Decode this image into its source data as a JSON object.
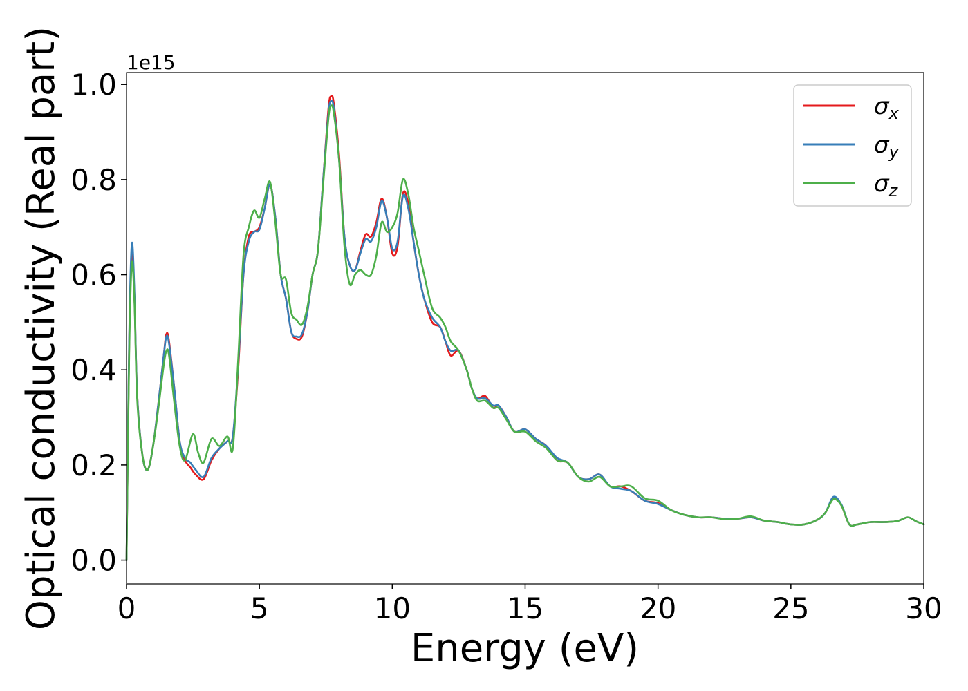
{
  "chart_data": {
    "type": "line",
    "xlabel": "Energy (eV)",
    "ylabel": "Optical conductivity (Real part)",
    "y_offset_label": "1e15",
    "xlim": [
      0,
      30
    ],
    "ylim": [
      -0.05,
      1.025
    ],
    "x_ticks": [
      0,
      5,
      10,
      15,
      20,
      25,
      30
    ],
    "x_tick_labels": [
      "0",
      "5",
      "10",
      "15",
      "20",
      "25",
      "30"
    ],
    "y_ticks": [
      0.0,
      0.2,
      0.4,
      0.6,
      0.8,
      1.0
    ],
    "y_tick_labels": [
      "0.0",
      "0.2",
      "0.4",
      "0.6",
      "0.8",
      "1.0"
    ],
    "grid": false,
    "legend_position": "top-right",
    "series": [
      {
        "name": "σx",
        "symbol": "σ",
        "subscript": "x",
        "color": "#e41a1c",
        "x": [
          0,
          0.1,
          0.2,
          0.3,
          0.4,
          0.6,
          0.8,
          1.0,
          1.2,
          1.4,
          1.5,
          1.6,
          1.8,
          2.0,
          2.2,
          2.4,
          2.6,
          2.9,
          3.2,
          3.5,
          3.8,
          4.0,
          4.2,
          4.4,
          4.6,
          4.8,
          5.0,
          5.2,
          5.4,
          5.6,
          5.8,
          6.0,
          6.2,
          6.4,
          6.6,
          6.8,
          7.0,
          7.2,
          7.4,
          7.6,
          7.7,
          7.8,
          8.0,
          8.2,
          8.4,
          8.6,
          8.8,
          9.0,
          9.2,
          9.4,
          9.6,
          9.8,
          10.0,
          10.2,
          10.4,
          10.6,
          10.8,
          11.0,
          11.2,
          11.5,
          11.8,
          12.0,
          12.2,
          12.5,
          12.8,
          13.0,
          13.2,
          13.5,
          13.8,
          14.0,
          14.3,
          14.6,
          15.0,
          15.4,
          15.8,
          16.2,
          16.6,
          17.0,
          17.4,
          17.8,
          18.2,
          18.6,
          19.0,
          19.5,
          20.0,
          20.5,
          21.0,
          21.5,
          22.0,
          22.5,
          23.0,
          23.5,
          24.0,
          24.5,
          25.0,
          25.5,
          26.0,
          26.3,
          26.6,
          26.9,
          27.2,
          27.5,
          28.0,
          28.5,
          29.0,
          29.4,
          29.7,
          30.0
        ],
        "values": [
          0.0,
          0.45,
          0.64,
          0.55,
          0.35,
          0.22,
          0.19,
          0.24,
          0.33,
          0.43,
          0.475,
          0.46,
          0.36,
          0.25,
          0.21,
          0.195,
          0.18,
          0.17,
          0.21,
          0.235,
          0.25,
          0.26,
          0.4,
          0.6,
          0.68,
          0.69,
          0.7,
          0.74,
          0.79,
          0.72,
          0.6,
          0.55,
          0.48,
          0.465,
          0.47,
          0.52,
          0.6,
          0.65,
          0.8,
          0.95,
          0.975,
          0.96,
          0.85,
          0.68,
          0.62,
          0.61,
          0.65,
          0.685,
          0.68,
          0.71,
          0.76,
          0.72,
          0.645,
          0.66,
          0.77,
          0.75,
          0.67,
          0.6,
          0.55,
          0.5,
          0.49,
          0.46,
          0.43,
          0.44,
          0.4,
          0.36,
          0.34,
          0.345,
          0.32,
          0.325,
          0.3,
          0.27,
          0.275,
          0.255,
          0.24,
          0.21,
          0.205,
          0.175,
          0.17,
          0.18,
          0.155,
          0.155,
          0.145,
          0.125,
          0.12,
          0.105,
          0.095,
          0.09,
          0.09,
          0.087,
          0.087,
          0.09,
          0.083,
          0.08,
          0.075,
          0.075,
          0.085,
          0.1,
          0.13,
          0.115,
          0.075,
          0.075,
          0.08,
          0.08,
          0.082,
          0.09,
          0.082,
          0.075
        ]
      },
      {
        "name": "σy",
        "symbol": "σ",
        "subscript": "y",
        "color": "#377eb8",
        "x": [
          0,
          0.1,
          0.2,
          0.3,
          0.4,
          0.6,
          0.8,
          1.0,
          1.2,
          1.4,
          1.5,
          1.6,
          1.8,
          2.0,
          2.2,
          2.4,
          2.6,
          2.9,
          3.2,
          3.5,
          3.8,
          4.0,
          4.2,
          4.4,
          4.6,
          4.8,
          5.0,
          5.2,
          5.4,
          5.6,
          5.8,
          6.0,
          6.2,
          6.4,
          6.6,
          6.8,
          7.0,
          7.2,
          7.4,
          7.6,
          7.7,
          7.8,
          8.0,
          8.2,
          8.4,
          8.6,
          8.8,
          9.0,
          9.2,
          9.4,
          9.6,
          9.8,
          10.0,
          10.2,
          10.4,
          10.6,
          10.8,
          11.0,
          11.2,
          11.5,
          11.8,
          12.0,
          12.2,
          12.5,
          12.8,
          13.0,
          13.2,
          13.5,
          13.8,
          14.0,
          14.3,
          14.6,
          15.0,
          15.4,
          15.8,
          16.2,
          16.6,
          17.0,
          17.4,
          17.8,
          18.2,
          18.6,
          19.0,
          19.5,
          20.0,
          20.5,
          21.0,
          21.5,
          22.0,
          22.5,
          23.0,
          23.5,
          24.0,
          24.5,
          25.0,
          25.5,
          26.0,
          26.3,
          26.6,
          26.9,
          27.2,
          27.5,
          28.0,
          28.5,
          29.0,
          29.4,
          29.7,
          30.0
        ],
        "values": [
          0.0,
          0.46,
          0.665,
          0.56,
          0.35,
          0.22,
          0.19,
          0.24,
          0.33,
          0.43,
          0.47,
          0.455,
          0.36,
          0.25,
          0.215,
          0.205,
          0.19,
          0.175,
          0.215,
          0.235,
          0.25,
          0.26,
          0.41,
          0.6,
          0.67,
          0.69,
          0.695,
          0.74,
          0.79,
          0.72,
          0.6,
          0.55,
          0.48,
          0.47,
          0.475,
          0.52,
          0.6,
          0.65,
          0.8,
          0.94,
          0.965,
          0.95,
          0.84,
          0.68,
          0.62,
          0.61,
          0.645,
          0.675,
          0.67,
          0.7,
          0.755,
          0.72,
          0.655,
          0.67,
          0.765,
          0.74,
          0.67,
          0.6,
          0.55,
          0.51,
          0.49,
          0.46,
          0.44,
          0.44,
          0.4,
          0.36,
          0.34,
          0.34,
          0.325,
          0.325,
          0.3,
          0.27,
          0.275,
          0.255,
          0.24,
          0.215,
          0.205,
          0.175,
          0.17,
          0.18,
          0.155,
          0.15,
          0.145,
          0.125,
          0.118,
          0.105,
          0.095,
          0.09,
          0.09,
          0.087,
          0.087,
          0.09,
          0.083,
          0.08,
          0.075,
          0.075,
          0.085,
          0.1,
          0.133,
          0.117,
          0.075,
          0.075,
          0.08,
          0.08,
          0.082,
          0.09,
          0.082,
          0.075
        ]
      },
      {
        "name": "σz",
        "symbol": "σ",
        "subscript": "z",
        "color": "#4daf4a",
        "x": [
          0,
          0.1,
          0.2,
          0.3,
          0.4,
          0.6,
          0.8,
          1.0,
          1.2,
          1.4,
          1.5,
          1.6,
          1.8,
          2.0,
          2.2,
          2.5,
          2.7,
          2.9,
          3.2,
          3.5,
          3.8,
          4.0,
          4.2,
          4.4,
          4.6,
          4.8,
          5.0,
          5.2,
          5.4,
          5.6,
          5.8,
          6.0,
          6.2,
          6.4,
          6.6,
          6.8,
          7.0,
          7.2,
          7.4,
          7.6,
          7.7,
          7.8,
          8.0,
          8.2,
          8.4,
          8.6,
          8.8,
          9.0,
          9.2,
          9.4,
          9.6,
          9.8,
          10.0,
          10.2,
          10.4,
          10.6,
          10.8,
          11.0,
          11.2,
          11.5,
          11.8,
          12.0,
          12.2,
          12.5,
          12.8,
          13.0,
          13.2,
          13.5,
          13.8,
          14.0,
          14.3,
          14.6,
          15.0,
          15.4,
          15.8,
          16.2,
          16.6,
          17.0,
          17.4,
          17.8,
          18.2,
          18.6,
          19.0,
          19.5,
          20.0,
          20.5,
          21.0,
          21.5,
          22.0,
          22.5,
          23.0,
          23.5,
          24.0,
          24.5,
          25.0,
          25.5,
          26.0,
          26.3,
          26.6,
          26.9,
          27.2,
          27.5,
          28.0,
          28.5,
          29.0,
          29.4,
          29.7,
          30.0
        ],
        "values": [
          0.0,
          0.43,
          0.625,
          0.54,
          0.34,
          0.22,
          0.19,
          0.24,
          0.32,
          0.41,
          0.44,
          0.43,
          0.33,
          0.24,
          0.21,
          0.265,
          0.225,
          0.205,
          0.255,
          0.24,
          0.26,
          0.235,
          0.42,
          0.64,
          0.7,
          0.735,
          0.72,
          0.76,
          0.795,
          0.71,
          0.6,
          0.59,
          0.52,
          0.505,
          0.495,
          0.53,
          0.6,
          0.65,
          0.79,
          0.93,
          0.955,
          0.94,
          0.84,
          0.66,
          0.58,
          0.6,
          0.61,
          0.6,
          0.6,
          0.64,
          0.71,
          0.69,
          0.7,
          0.73,
          0.8,
          0.77,
          0.7,
          0.65,
          0.6,
          0.53,
          0.51,
          0.49,
          0.46,
          0.44,
          0.4,
          0.36,
          0.335,
          0.335,
          0.32,
          0.32,
          0.295,
          0.27,
          0.27,
          0.25,
          0.235,
          0.21,
          0.205,
          0.175,
          0.165,
          0.175,
          0.155,
          0.155,
          0.155,
          0.13,
          0.125,
          0.105,
          0.095,
          0.09,
          0.09,
          0.086,
          0.087,
          0.092,
          0.083,
          0.08,
          0.075,
          0.075,
          0.085,
          0.1,
          0.128,
          0.115,
          0.075,
          0.075,
          0.08,
          0.08,
          0.082,
          0.09,
          0.082,
          0.075
        ]
      }
    ]
  }
}
